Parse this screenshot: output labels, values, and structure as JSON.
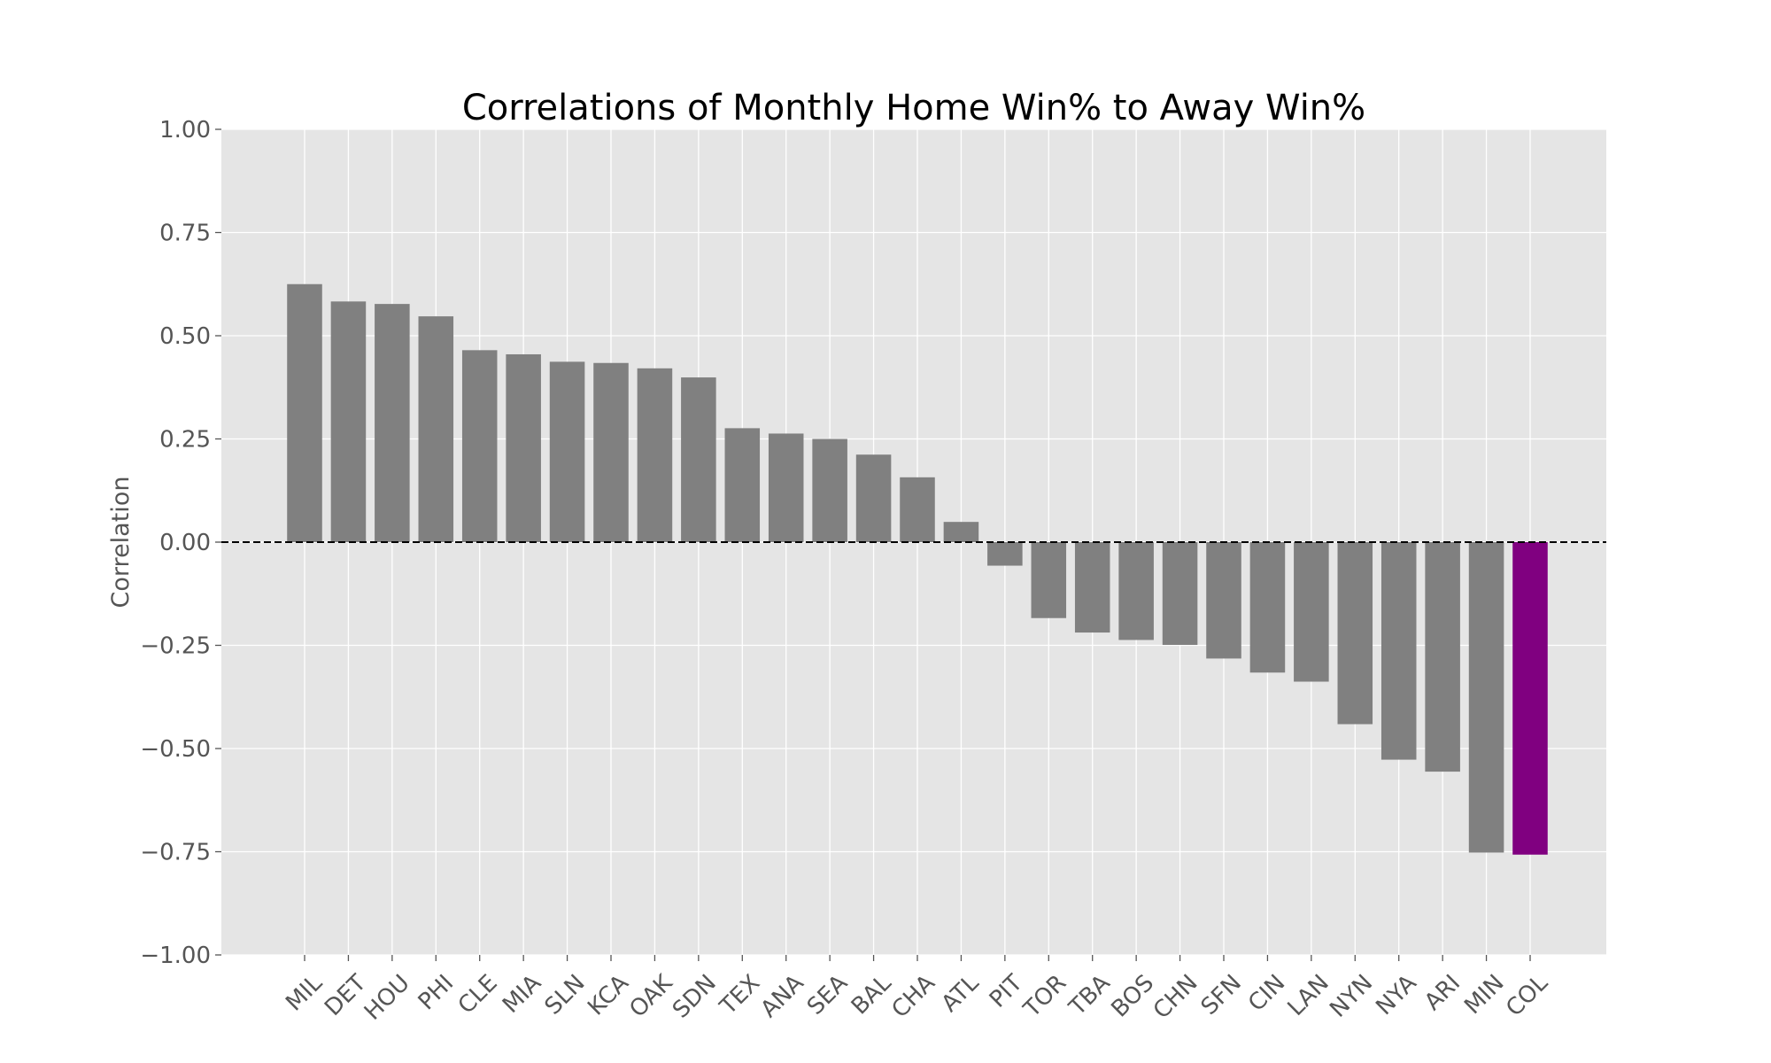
{
  "chart_data": {
    "type": "bar",
    "title": "Correlations of Monthly Home Win% to Away Win%",
    "xlabel": "",
    "ylabel": "Correlation",
    "ylim": [
      -1.0,
      1.0
    ],
    "yticks": [
      "−1.00",
      "−0.75",
      "−0.50",
      "−0.25",
      "0.00",
      "0.25",
      "0.50",
      "0.75",
      "1.00"
    ],
    "ytick_values": [
      -1.0,
      -0.75,
      -0.5,
      -0.25,
      0.0,
      0.25,
      0.5,
      0.75,
      1.0
    ],
    "grid": true,
    "zero_line": "dashed",
    "categories": [
      "MIL",
      "DET",
      "HOU",
      "PHI",
      "CLE",
      "MIA",
      "SLN",
      "KCA",
      "OAK",
      "SDN",
      "TEX",
      "ANA",
      "SEA",
      "BAL",
      "CHA",
      "ATL",
      "PIT",
      "TOR",
      "TBA",
      "BOS",
      "CHN",
      "SFN",
      "CIN",
      "LAN",
      "NYN",
      "NYA",
      "ARI",
      "MIN",
      "COL"
    ],
    "values": [
      0.625,
      0.583,
      0.577,
      0.547,
      0.465,
      0.455,
      0.437,
      0.434,
      0.421,
      0.399,
      0.276,
      0.263,
      0.25,
      0.212,
      0.157,
      0.049,
      -0.057,
      -0.184,
      -0.219,
      -0.237,
      -0.249,
      -0.282,
      -0.316,
      -0.338,
      -0.441,
      -0.527,
      -0.556,
      -0.752,
      -0.757
    ],
    "bar_color": "#808080",
    "highlight": {
      "category": "COL",
      "color": "#800080"
    },
    "background_color": "#e5e5e5",
    "grid_color": "#ffffff"
  }
}
